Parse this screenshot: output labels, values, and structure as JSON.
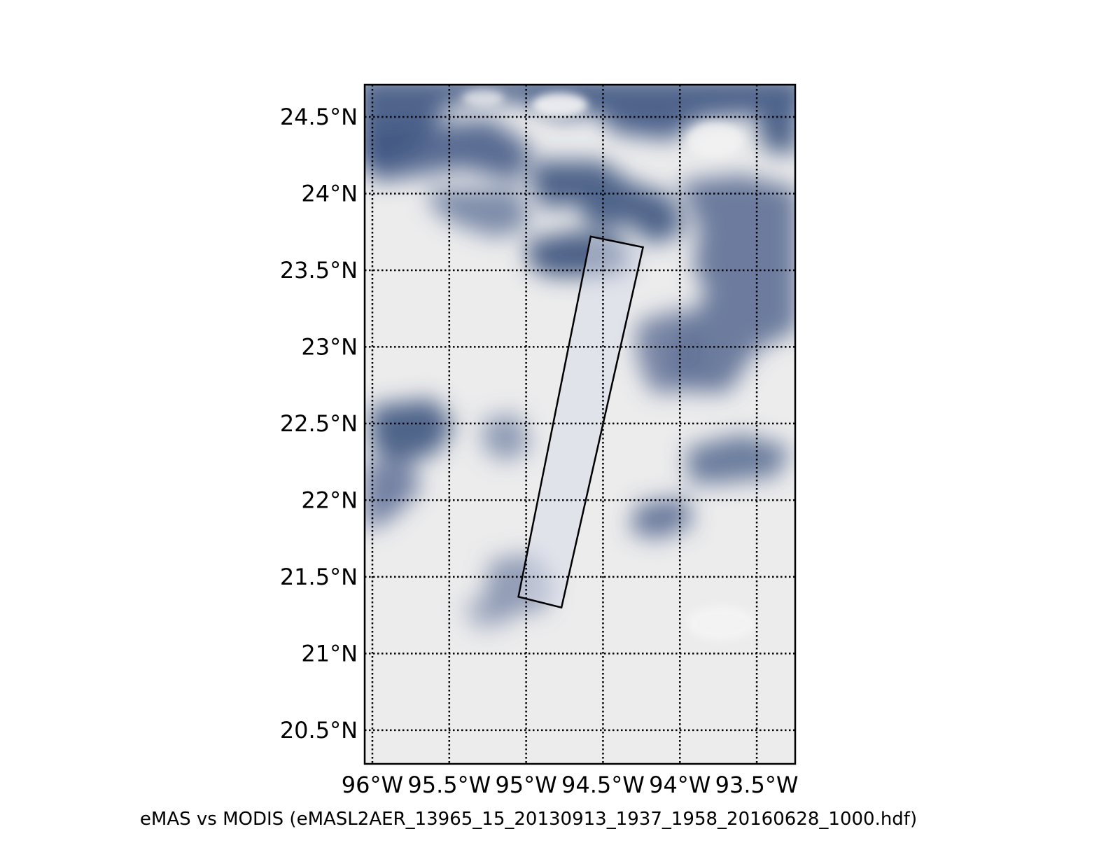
{
  "caption": "eMAS vs MODIS (eMASL2AER_13965_15_20130913_1937_1958_20160628_1000.hdf)",
  "map": {
    "projection": "equirectangular",
    "lon_range": [
      -96.05,
      -93.25
    ],
    "lat_range": [
      20.28,
      24.71
    ],
    "grid": "on",
    "grid_style": "dotted",
    "latitude_labels": [
      {
        "value": 24.5,
        "label": "24.5°N"
      },
      {
        "value": 24.0,
        "label": "24°N"
      },
      {
        "value": 23.5,
        "label": "23.5°N"
      },
      {
        "value": 23.0,
        "label": "23°N"
      },
      {
        "value": 22.5,
        "label": "22.5°N"
      },
      {
        "value": 22.0,
        "label": "22°N"
      },
      {
        "value": 21.5,
        "label": "21.5°N"
      },
      {
        "value": 21.0,
        "label": "21°N"
      },
      {
        "value": 20.5,
        "label": "20.5°N"
      }
    ],
    "longitude_labels": [
      {
        "value": -96.0,
        "label": "96°W"
      },
      {
        "value": -95.5,
        "label": "95.5°W"
      },
      {
        "value": -95.0,
        "label": "95°W"
      },
      {
        "value": -94.5,
        "label": "94.5°W"
      },
      {
        "value": -94.0,
        "label": "94°W"
      },
      {
        "value": -93.5,
        "label": "93.5°W"
      }
    ],
    "swath_outline": [
      {
        "lon": -94.58,
        "lat": 23.72
      },
      {
        "lon": -94.24,
        "lat": 23.65
      },
      {
        "lon": -94.77,
        "lat": 21.3
      },
      {
        "lon": -95.05,
        "lat": 21.37
      }
    ],
    "colors": {
      "cloud": "#eeeeef",
      "ocean": "#3f5a85",
      "frame": "#000000"
    }
  }
}
